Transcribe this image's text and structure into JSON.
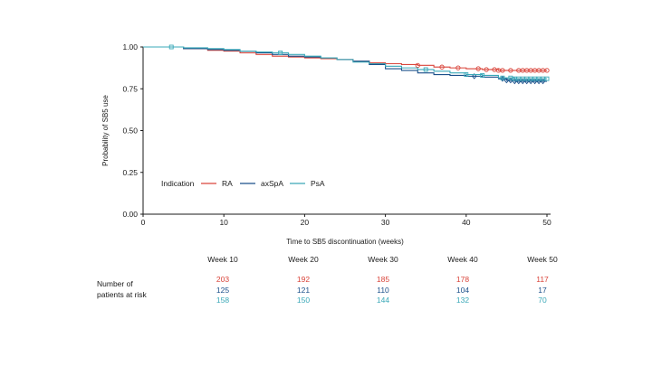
{
  "chart_data": {
    "type": "line",
    "subtype": "kaplan-meier",
    "title": "",
    "xlabel": "Time to SB5 discontinuation (weeks)",
    "ylabel": "Probability of SB5 use",
    "xlim": [
      0,
      50
    ],
    "ylim": [
      0,
      1
    ],
    "xticks": [
      "0",
      "10",
      "20",
      "30",
      "40",
      "50"
    ],
    "yticks": [
      "0.00",
      "0.25",
      "0.50",
      "0.75",
      "1.00"
    ],
    "grid": false,
    "legend": {
      "title": "Indication",
      "placement": "lower-left",
      "entries": [
        "RA",
        "axSpA",
        "PsA"
      ]
    },
    "series": [
      {
        "name": "RA",
        "color": "#d9443a",
        "x": [
          0,
          3,
          5,
          8,
          10,
          12,
          14,
          16,
          18,
          20,
          22,
          24,
          26,
          28,
          30,
          32,
          34,
          36,
          38,
          40,
          42,
          44,
          46,
          48,
          50
        ],
        "y": [
          1.0,
          1.0,
          0.99,
          0.98,
          0.975,
          0.965,
          0.955,
          0.945,
          0.94,
          0.935,
          0.93,
          0.925,
          0.915,
          0.905,
          0.9,
          0.895,
          0.89,
          0.88,
          0.875,
          0.87,
          0.865,
          0.86,
          0.86,
          0.86,
          0.86
        ],
        "censored_x": [
          34,
          37,
          39,
          41.5,
          42.5,
          43.5,
          44,
          44.5,
          45.5,
          46.5,
          47,
          47.5,
          48,
          48.5,
          49,
          49.5,
          50
        ]
      },
      {
        "name": "axSpA",
        "color": "#1a4f8a",
        "x": [
          0,
          3,
          5,
          8,
          10,
          12,
          14,
          16,
          18,
          20,
          22,
          24,
          26,
          28,
          30,
          32,
          34,
          36,
          38,
          40,
          42,
          44,
          45,
          46,
          48,
          50
        ],
        "y": [
          1.0,
          1.0,
          0.99,
          0.985,
          0.98,
          0.975,
          0.965,
          0.955,
          0.945,
          0.94,
          0.935,
          0.925,
          0.915,
          0.895,
          0.87,
          0.86,
          0.845,
          0.835,
          0.83,
          0.825,
          0.82,
          0.81,
          0.8,
          0.795,
          0.795,
          0.795
        ],
        "censored_x": [
          41,
          44.5,
          45,
          45.5,
          46,
          46.5,
          47,
          47.5,
          48,
          48.5,
          49,
          49.5
        ]
      },
      {
        "name": "PsA",
        "color": "#3aa8b8",
        "x": [
          0,
          3,
          5,
          8,
          10,
          12,
          14,
          16,
          18,
          20,
          22,
          24,
          26,
          28,
          30,
          32,
          34,
          36,
          38,
          40,
          42,
          44,
          46,
          48,
          50
        ],
        "y": [
          1.0,
          1.0,
          0.995,
          0.99,
          0.985,
          0.975,
          0.97,
          0.965,
          0.955,
          0.945,
          0.935,
          0.925,
          0.91,
          0.9,
          0.885,
          0.875,
          0.865,
          0.855,
          0.845,
          0.835,
          0.83,
          0.815,
          0.81,
          0.81,
          0.81
        ],
        "censored_x": [
          3.5,
          17,
          35,
          40,
          42,
          44.5,
          45.5,
          46,
          46.5,
          47,
          47.5,
          48,
          48.5,
          49,
          49.5,
          50
        ]
      }
    ]
  },
  "risk_table": {
    "label_line1": "Number of",
    "label_line2": "patients at risk",
    "columns": [
      {
        "week": "Week 10",
        "RA": "203",
        "axSpA": "125",
        "PsA": "158"
      },
      {
        "week": "Week 20",
        "RA": "192",
        "axSpA": "121",
        "PsA": "150"
      },
      {
        "week": "Week 30",
        "RA": "185",
        "axSpA": "110",
        "PsA": "144"
      },
      {
        "week": "Week 40",
        "RA": "178",
        "axSpA": "104",
        "PsA": "132"
      },
      {
        "week": "Week 50",
        "RA": "117",
        "axSpA": "17",
        "PsA": "70"
      }
    ]
  }
}
